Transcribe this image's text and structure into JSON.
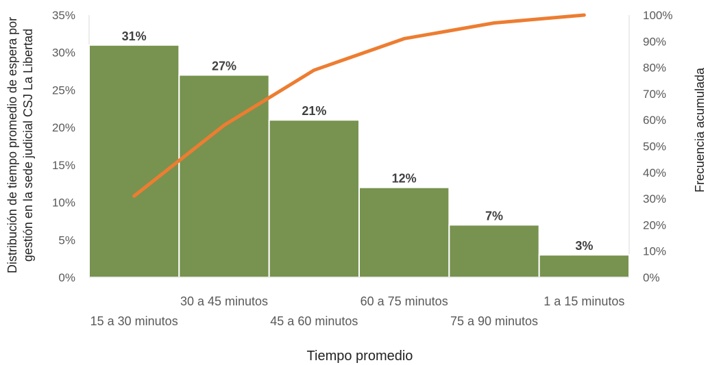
{
  "chart_data": {
    "type": "bar",
    "subtype": "pareto",
    "categories": [
      "15 a 30 minutos",
      "30 a 45 minutos",
      "45 a 60 minutos",
      "60 a 75 minutos",
      "75 a 90 minutos",
      "1 a 15 minutos"
    ],
    "series": [
      {
        "values": [
          31,
          27,
          21,
          12,
          7,
          3
        ],
        "axis": "left",
        "color": "#77934f"
      },
      {
        "values": [
          31,
          58,
          79,
          91,
          97,
          100
        ],
        "axis": "right",
        "type": "line",
        "color": "#ed7d31"
      }
    ],
    "data_labels": [
      "31%",
      "27%",
      "21%",
      "12%",
      "7%",
      "3%"
    ],
    "xlabel": "Tiempo promedio",
    "ylabel_left_line1": "Distribución de tiempo  promedio de espera por",
    "ylabel_left_line2": "gestión en la sede judicial CSJ La Libertad",
    "ylabel_right": "Frecuencia acumulada",
    "ylim_left": [
      0,
      35
    ],
    "ylim_right": [
      0,
      100
    ],
    "yticks_left": [
      "0%",
      "5%",
      "10%",
      "15%",
      "20%",
      "25%",
      "30%",
      "35%"
    ],
    "yticks_right": [
      "0%",
      "10%",
      "20%",
      "30%",
      "40%",
      "50%",
      "60%",
      "70%",
      "80%",
      "90%",
      "100%"
    ],
    "grid": false,
    "legend": "none"
  }
}
